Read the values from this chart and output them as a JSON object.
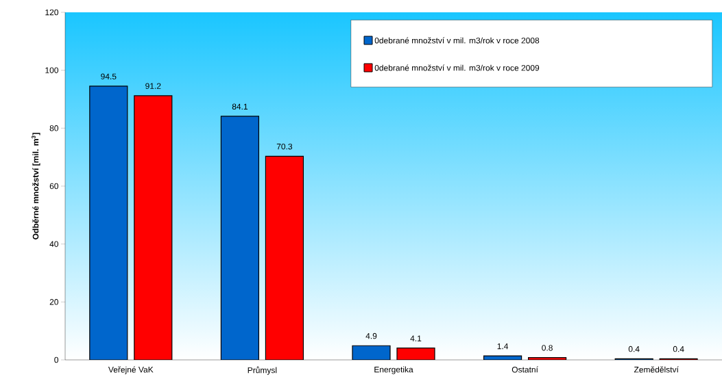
{
  "chart_data": {
    "type": "bar",
    "ylabel": "Odběrné množství [mil. m$^{3}$]",
    "categories": [
      "Veřejné VaK",
      "Průmysl",
      "Energetika",
      "Ostatní",
      "Zemědělství"
    ],
    "series": [
      {
        "name": "0debrané množství v mil. m3/rok v roce 2008",
        "color": "#0066cc",
        "values": [
          94.5,
          84.1,
          4.9,
          1.4,
          0.4
        ]
      },
      {
        "name": "0debrané množství v mil. m3/rok v roce 2009",
        "color": "#ff0000",
        "values": [
          91.2,
          70.3,
          4.1,
          0.8,
          0.4
        ]
      }
    ],
    "ylim": [
      0,
      120
    ],
    "yticks": [
      0,
      20,
      40,
      60,
      80,
      100,
      120
    ],
    "data_labels": true,
    "legend": "top right",
    "grid": false
  }
}
